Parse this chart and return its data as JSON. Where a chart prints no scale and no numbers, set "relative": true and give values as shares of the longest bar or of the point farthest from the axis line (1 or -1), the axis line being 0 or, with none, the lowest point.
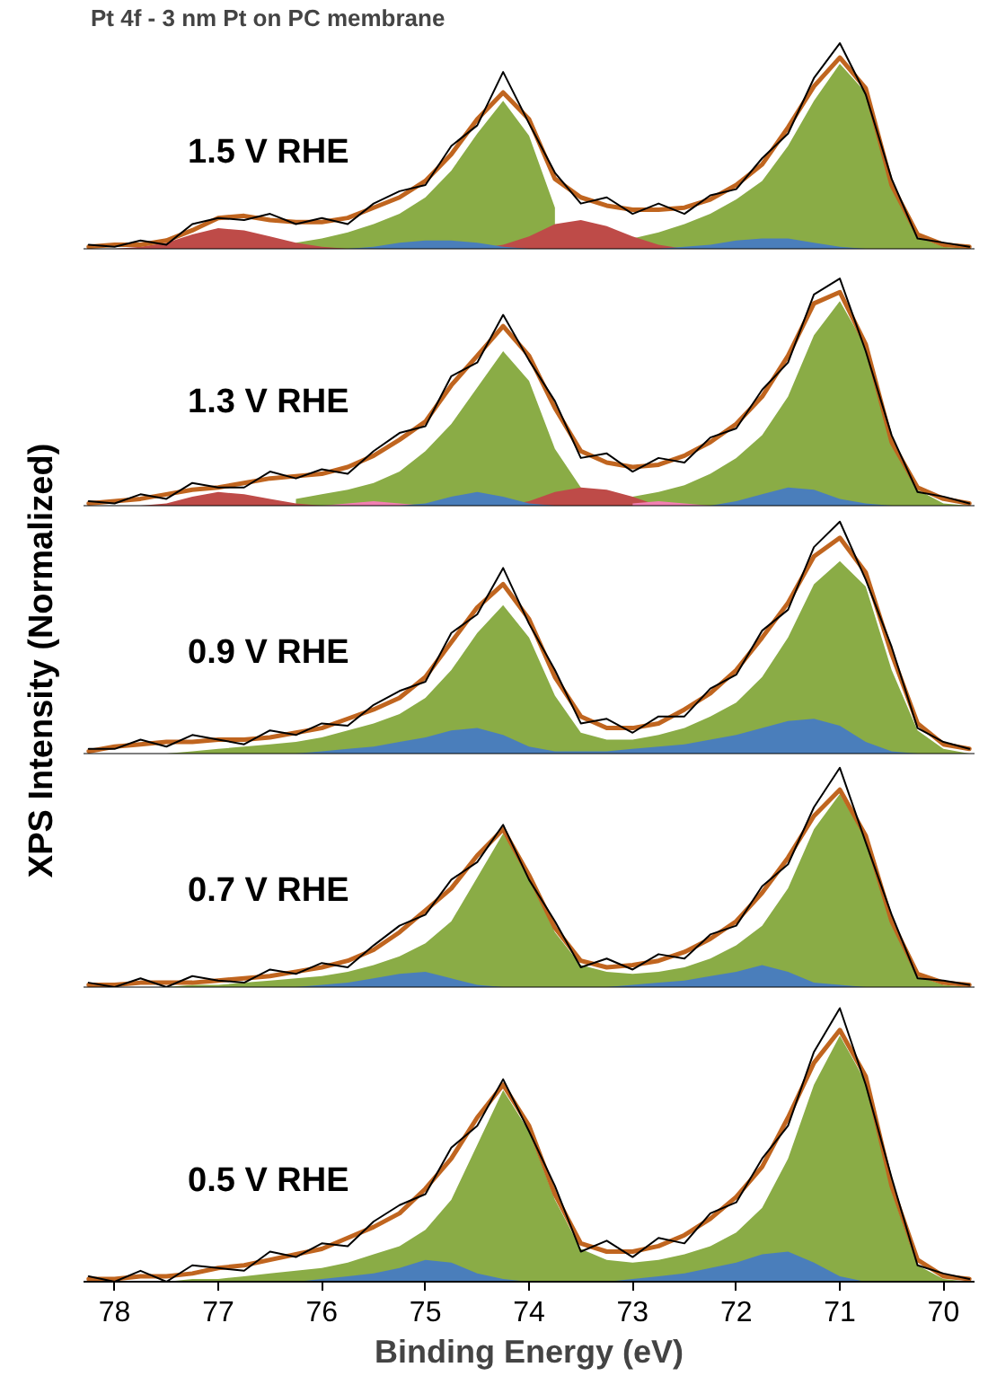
{
  "chart_data": [
    {
      "type": "area",
      "title": "Pt 4f - 3 nm Pt on PC membrane",
      "relative": true,
      "xlim": [
        78.3,
        69.7
      ],
      "tick_labels": false,
      "annotations": [
        "1.5 V RHE"
      ],
      "x": [
        78.25,
        78.0,
        77.75,
        77.5,
        77.25,
        77.0,
        76.75,
        76.5,
        76.25,
        76.0,
        75.75,
        75.5,
        75.25,
        75.0,
        74.75,
        74.5,
        74.25,
        74.0,
        73.75,
        73.5,
        73.25,
        73.0,
        72.75,
        72.5,
        72.25,
        72.0,
        71.75,
        71.5,
        71.25,
        71.0,
        70.75,
        70.5,
        70.25,
        70.0,
        69.75
      ],
      "series": [
        {
          "color": "#8aac46",
          "values": [
            null,
            null,
            null,
            null,
            null,
            null,
            null,
            null,
            0.03,
            0.05,
            0.08,
            0.12,
            0.17,
            0.25,
            0.38,
            0.56,
            0.72,
            0.55,
            0.2,
            null,
            null,
            0.05,
            0.08,
            0.12,
            0.17,
            0.24,
            0.33,
            0.5,
            0.72,
            0.9,
            0.76,
            0.3,
            0.06,
            0.01,
            0
          ]
        },
        {
          "color": "#be4b48",
          "values": [
            null,
            0,
            0.01,
            0.03,
            0.07,
            0.1,
            0.09,
            0.06,
            0.03,
            0.01,
            0,
            null,
            null,
            null,
            null,
            0,
            0.02,
            0.06,
            0.12,
            0.14,
            0.11,
            0.06,
            0.02,
            0,
            null,
            null,
            null,
            null,
            null,
            null,
            null,
            null,
            null,
            null,
            null
          ]
        },
        {
          "color": "#4a7ebb",
          "values": [
            null,
            null,
            null,
            null,
            null,
            null,
            null,
            null,
            null,
            null,
            0,
            0.01,
            0.03,
            0.04,
            0.04,
            0.03,
            0.01,
            0,
            null,
            null,
            null,
            null,
            0,
            0.01,
            0.02,
            0.04,
            0.05,
            0.05,
            0.03,
            0.01,
            0,
            null,
            null,
            null,
            null
          ]
        },
        {
          "type": "line",
          "color": "#c0651f",
          "values": [
            0.01,
            0.02,
            0.02,
            0.04,
            0.09,
            0.15,
            0.16,
            0.14,
            0.13,
            0.13,
            0.15,
            0.2,
            0.25,
            0.33,
            0.46,
            0.63,
            0.76,
            0.63,
            0.34,
            0.25,
            0.21,
            0.19,
            0.19,
            0.2,
            0.24,
            0.31,
            0.41,
            0.59,
            0.79,
            0.93,
            0.78,
            0.31,
            0.07,
            0.02,
            0.01
          ]
        },
        {
          "type": "line",
          "color": "#000000",
          "values": [
            0.02,
            0.01,
            0.04,
            0.02,
            0.12,
            0.15,
            0.14,
            0.17,
            0.12,
            0.15,
            0.12,
            0.22,
            0.28,
            0.31,
            0.5,
            0.6,
            0.86,
            0.61,
            0.37,
            0.22,
            0.25,
            0.17,
            0.22,
            0.17,
            0.26,
            0.29,
            0.44,
            0.56,
            0.83,
            1.0,
            0.75,
            0.34,
            0.05,
            0.03,
            0.01
          ]
        }
      ]
    },
    {
      "type": "area",
      "relative": true,
      "xlim": [
        78.3,
        69.7
      ],
      "tick_labels": false,
      "annotations": [
        "1.3 V RHE"
      ],
      "x": [
        78.25,
        78.0,
        77.75,
        77.5,
        77.25,
        77.0,
        76.75,
        76.5,
        76.25,
        76.0,
        75.75,
        75.5,
        75.25,
        75.0,
        74.75,
        74.5,
        74.25,
        74.0,
        73.75,
        73.5,
        73.25,
        73.0,
        72.75,
        72.5,
        72.25,
        72.0,
        71.75,
        71.5,
        71.25,
        71.0,
        70.75,
        70.5,
        70.25,
        70.0,
        69.75
      ],
      "series": [
        {
          "color": "#8aac46",
          "values": [
            null,
            null,
            null,
            null,
            null,
            null,
            null,
            null,
            0.03,
            0.05,
            0.07,
            0.1,
            0.15,
            0.24,
            0.36,
            0.52,
            0.68,
            0.55,
            0.25,
            0.08,
            null,
            0.04,
            0.06,
            0.09,
            0.14,
            0.21,
            0.31,
            0.48,
            0.75,
            0.9,
            0.7,
            0.27,
            0.07,
            0.01,
            0
          ]
        },
        {
          "color": "#be4b48",
          "values": [
            null,
            null,
            0,
            0.01,
            0.04,
            0.06,
            0.05,
            0.03,
            0.01,
            0,
            null,
            null,
            null,
            null,
            null,
            null,
            0,
            0.02,
            0.06,
            0.08,
            0.07,
            0.04,
            0,
            null,
            null,
            null,
            null,
            null,
            null,
            null,
            null,
            null,
            null,
            null,
            null
          ]
        },
        {
          "color": "#f27fb2",
          "values": [
            null,
            null,
            null,
            null,
            null,
            null,
            null,
            null,
            null,
            0,
            0.01,
            0.02,
            0.01,
            0,
            null,
            null,
            null,
            null,
            null,
            null,
            null,
            0.01,
            0.02,
            0.01,
            0,
            null,
            null,
            null,
            null,
            null,
            null,
            null,
            null,
            null,
            null
          ]
        },
        {
          "color": "#4a7ebb",
          "values": [
            null,
            null,
            null,
            null,
            null,
            null,
            null,
            null,
            null,
            null,
            null,
            null,
            0,
            0.01,
            0.04,
            0.06,
            0.04,
            0.01,
            0,
            null,
            null,
            null,
            null,
            null,
            0,
            0.02,
            0.05,
            0.08,
            0.07,
            0.03,
            0.01,
            0,
            null,
            null,
            null
          ]
        },
        {
          "type": "line",
          "color": "#c0651f",
          "values": [
            0.01,
            0.02,
            0.03,
            0.05,
            0.07,
            0.08,
            0.1,
            0.12,
            0.13,
            0.14,
            0.17,
            0.22,
            0.29,
            0.37,
            0.53,
            0.66,
            0.79,
            0.66,
            0.43,
            0.24,
            0.19,
            0.17,
            0.18,
            0.22,
            0.28,
            0.36,
            0.48,
            0.66,
            0.89,
            0.94,
            0.71,
            0.28,
            0.08,
            0.03,
            0.01
          ]
        },
        {
          "type": "line",
          "color": "#000000",
          "values": [
            0.02,
            0.01,
            0.05,
            0.03,
            0.1,
            0.08,
            0.08,
            0.15,
            0.12,
            0.16,
            0.14,
            0.24,
            0.32,
            0.35,
            0.57,
            0.63,
            0.84,
            0.64,
            0.46,
            0.21,
            0.23,
            0.15,
            0.21,
            0.19,
            0.3,
            0.34,
            0.51,
            0.63,
            0.93,
            1.0,
            0.68,
            0.31,
            0.06,
            0.04,
            0.01
          ]
        }
      ]
    },
    {
      "type": "area",
      "ylabel": "XPS Intensity (Normalized)",
      "relative": true,
      "xlim": [
        78.3,
        69.7
      ],
      "tick_labels": false,
      "annotations": [
        "0.9 V RHE"
      ],
      "x": [
        78.25,
        78.0,
        77.75,
        77.5,
        77.25,
        77.0,
        76.75,
        76.5,
        76.25,
        76.0,
        75.75,
        75.5,
        75.25,
        75.0,
        74.75,
        74.5,
        74.25,
        74.0,
        73.75,
        73.5,
        73.25,
        73.0,
        72.75,
        72.5,
        72.25,
        72.0,
        71.75,
        71.5,
        71.25,
        71.0,
        70.75,
        70.5,
        70.25,
        70.0,
        69.75
      ],
      "series": [
        {
          "color": "#8aac46",
          "values": [
            0,
            0,
            0,
            0,
            0.01,
            0.02,
            0.03,
            0.04,
            0.05,
            0.07,
            0.1,
            0.13,
            0.17,
            0.24,
            0.36,
            0.52,
            0.64,
            0.5,
            0.25,
            0.09,
            0.06,
            0.06,
            0.08,
            0.11,
            0.16,
            0.22,
            0.33,
            0.5,
            0.73,
            0.83,
            0.72,
            0.36,
            0.1,
            0.02,
            0
          ]
        },
        {
          "color": "#4a7ebb",
          "values": [
            0,
            0,
            0,
            0,
            0,
            0,
            0,
            0,
            0,
            0.01,
            0.02,
            0.03,
            0.05,
            0.07,
            0.1,
            0.11,
            0.08,
            0.03,
            0.01,
            0.01,
            0.01,
            0.02,
            0.03,
            0.04,
            0.06,
            0.08,
            0.11,
            0.14,
            0.15,
            0.12,
            0.05,
            0.01,
            0,
            0,
            0
          ]
        },
        {
          "type": "line",
          "color": "#c0651f",
          "values": [
            0.01,
            0.03,
            0.04,
            0.05,
            0.05,
            0.06,
            0.06,
            0.07,
            0.09,
            0.11,
            0.15,
            0.19,
            0.24,
            0.33,
            0.48,
            0.63,
            0.73,
            0.58,
            0.33,
            0.16,
            0.11,
            0.11,
            0.13,
            0.19,
            0.26,
            0.36,
            0.5,
            0.65,
            0.85,
            0.93,
            0.78,
            0.43,
            0.13,
            0.04,
            0.02
          ]
        },
        {
          "type": "line",
          "color": "#000000",
          "values": [
            0.02,
            0.02,
            0.06,
            0.03,
            0.08,
            0.06,
            0.04,
            0.1,
            0.08,
            0.13,
            0.12,
            0.21,
            0.27,
            0.31,
            0.52,
            0.6,
            0.8,
            0.56,
            0.36,
            0.13,
            0.15,
            0.09,
            0.16,
            0.16,
            0.28,
            0.34,
            0.53,
            0.62,
            0.89,
            1.0,
            0.75,
            0.46,
            0.11,
            0.05,
            0.02
          ]
        }
      ]
    },
    {
      "type": "area",
      "relative": true,
      "xlim": [
        78.3,
        69.7
      ],
      "tick_labels": false,
      "annotations": [
        "0.7 V RHE"
      ],
      "x": [
        78.25,
        78.0,
        77.75,
        77.5,
        77.25,
        77.0,
        76.75,
        76.5,
        76.25,
        76.0,
        75.75,
        75.5,
        75.25,
        75.0,
        74.75,
        74.5,
        74.25,
        74.0,
        73.75,
        73.5,
        73.25,
        73.0,
        72.75,
        72.5,
        72.25,
        72.0,
        71.75,
        71.5,
        71.25,
        71.0,
        70.75,
        70.5,
        70.25,
        70.0,
        69.75
      ],
      "series": [
        {
          "color": "#8aac46",
          "values": [
            0,
            0,
            0,
            0,
            0.01,
            0.01,
            0.02,
            0.03,
            0.04,
            0.05,
            0.07,
            0.1,
            0.14,
            0.2,
            0.3,
            0.5,
            0.7,
            0.5,
            0.25,
            0.1,
            0.07,
            0.06,
            0.07,
            0.09,
            0.13,
            0.19,
            0.28,
            0.45,
            0.72,
            0.88,
            0.68,
            0.29,
            0.05,
            0.01,
            0
          ]
        },
        {
          "color": "#4a7ebb",
          "values": [
            0,
            0,
            0,
            0,
            0,
            0,
            0,
            0,
            0,
            0.01,
            0.02,
            0.04,
            0.06,
            0.07,
            0.04,
            0.01,
            0,
            0,
            0,
            0,
            0,
            0.01,
            0.02,
            0.03,
            0.05,
            0.07,
            0.1,
            0.07,
            0.02,
            0.01,
            0,
            0,
            0,
            0,
            0
          ]
        },
        {
          "type": "line",
          "color": "#c0651f",
          "values": [
            0.01,
            0.01,
            0.02,
            0.02,
            0.02,
            0.03,
            0.04,
            0.05,
            0.07,
            0.09,
            0.12,
            0.17,
            0.25,
            0.35,
            0.45,
            0.6,
            0.72,
            0.51,
            0.27,
            0.12,
            0.09,
            0.1,
            0.12,
            0.16,
            0.22,
            0.3,
            0.43,
            0.59,
            0.78,
            0.9,
            0.69,
            0.3,
            0.06,
            0.02,
            0.01
          ]
        },
        {
          "type": "line",
          "color": "#000000",
          "values": [
            0.02,
            0.0,
            0.04,
            0.0,
            0.05,
            0.03,
            0.02,
            0.08,
            0.06,
            0.11,
            0.09,
            0.19,
            0.28,
            0.33,
            0.49,
            0.57,
            0.74,
            0.49,
            0.3,
            0.09,
            0.13,
            0.08,
            0.15,
            0.13,
            0.24,
            0.28,
            0.46,
            0.56,
            0.82,
            1.0,
            0.66,
            0.33,
            0.04,
            0.03,
            0.01
          ]
        }
      ]
    },
    {
      "type": "area",
      "xlabel": "Binding Energy (eV)",
      "relative": true,
      "xlim": [
        78.3,
        69.7
      ],
      "xticks": [
        78,
        77,
        76,
        75,
        74,
        73,
        72,
        71,
        70
      ],
      "tick_labels": "x",
      "annotations": [
        "0.5 V RHE"
      ],
      "x": [
        78.25,
        78.0,
        77.75,
        77.5,
        77.25,
        77.0,
        76.75,
        76.5,
        76.25,
        76.0,
        75.75,
        75.5,
        75.25,
        75.0,
        74.75,
        74.5,
        74.25,
        74.0,
        73.75,
        73.5,
        73.25,
        73.0,
        72.75,
        72.5,
        72.25,
        72.0,
        71.75,
        71.5,
        71.25,
        71.0,
        70.75,
        70.5,
        70.25,
        70.0,
        69.75
      ],
      "series": [
        {
          "color": "#8aac46",
          "values": [
            0,
            0,
            0,
            0,
            0.01,
            0.01,
            0.02,
            0.03,
            0.04,
            0.05,
            0.07,
            0.1,
            0.13,
            0.19,
            0.3,
            0.5,
            0.7,
            0.55,
            0.3,
            0.12,
            0.08,
            0.07,
            0.08,
            0.1,
            0.13,
            0.18,
            0.27,
            0.45,
            0.72,
            0.9,
            0.73,
            0.33,
            0.06,
            0.01,
            0
          ]
        },
        {
          "color": "#4a7ebb",
          "values": [
            0,
            0,
            0,
            0,
            0,
            0,
            0,
            0,
            0,
            0.01,
            0.02,
            0.03,
            0.05,
            0.08,
            0.07,
            0.03,
            0.01,
            0,
            0,
            0,
            0,
            0.01,
            0.02,
            0.03,
            0.05,
            0.07,
            0.1,
            0.11,
            0.07,
            0.02,
            0,
            0,
            0,
            0,
            0
          ]
        },
        {
          "type": "line",
          "color": "#c0651f",
          "values": [
            0.01,
            0.01,
            0.02,
            0.02,
            0.03,
            0.05,
            0.06,
            0.08,
            0.1,
            0.12,
            0.16,
            0.2,
            0.25,
            0.34,
            0.45,
            0.6,
            0.72,
            0.57,
            0.32,
            0.14,
            0.11,
            0.11,
            0.13,
            0.17,
            0.23,
            0.31,
            0.42,
            0.6,
            0.8,
            0.92,
            0.75,
            0.35,
            0.08,
            0.02,
            0.01
          ]
        },
        {
          "type": "line",
          "color": "#000000",
          "values": [
            0.02,
            0.0,
            0.04,
            0.0,
            0.06,
            0.05,
            0.04,
            0.11,
            0.09,
            0.14,
            0.13,
            0.22,
            0.28,
            0.32,
            0.49,
            0.57,
            0.74,
            0.55,
            0.35,
            0.11,
            0.15,
            0.09,
            0.16,
            0.14,
            0.25,
            0.29,
            0.45,
            0.57,
            0.84,
            1.0,
            0.72,
            0.38,
            0.06,
            0.03,
            0.01
          ]
        }
      ]
    }
  ]
}
